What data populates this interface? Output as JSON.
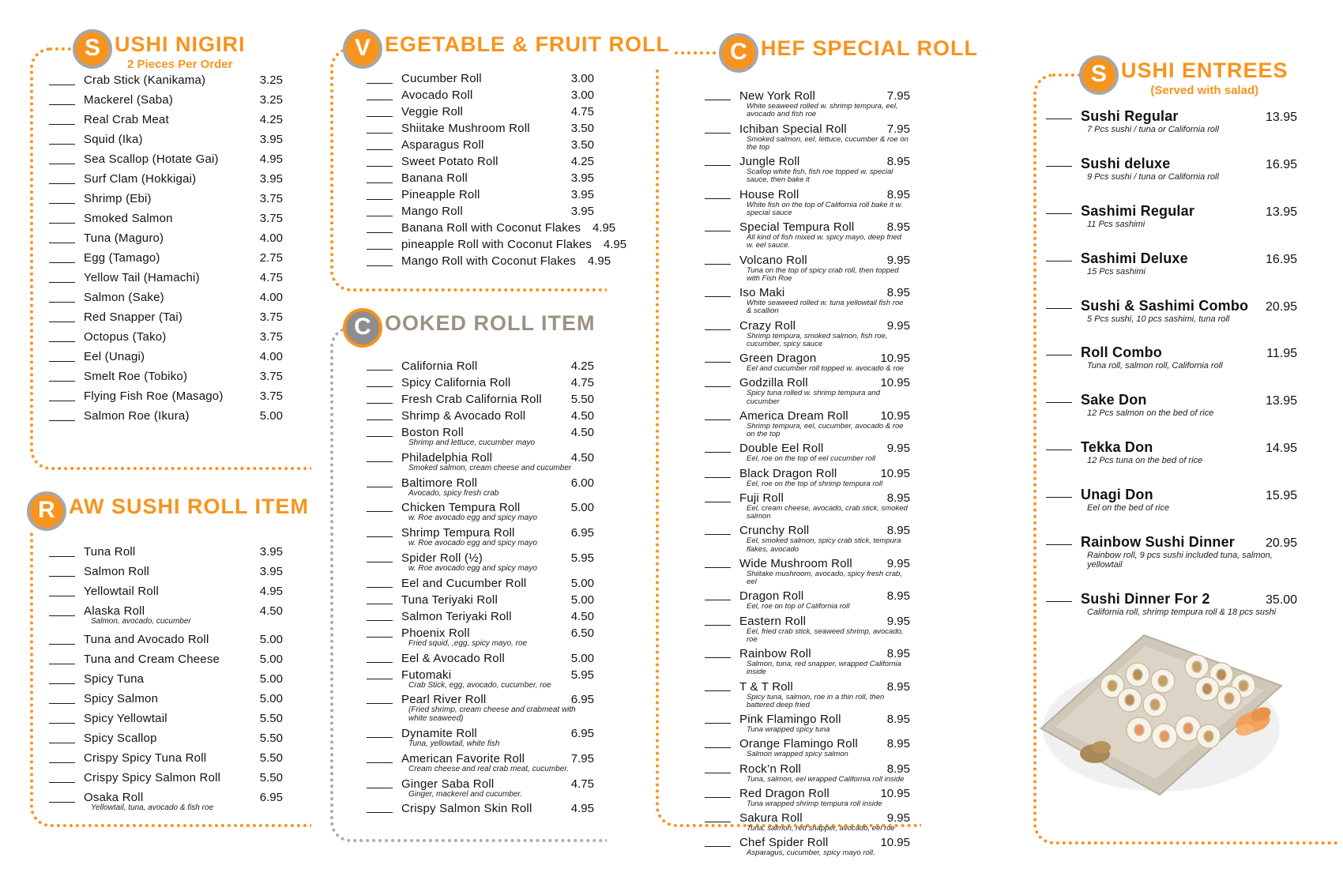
{
  "colors": {
    "accent_orange": "#f7941d",
    "cooked_title_gray": "#9c9283",
    "badge_ring_gray": "#a6a6a6",
    "text": "#121212"
  },
  "sections": [
    {
      "id": "sushi-nigiri",
      "badge_letter": "S",
      "title_rest": "USHI NIGIRI",
      "subtitle": "2 Pieces Per Order",
      "items": [
        {
          "name": "Crab Stick (Kanikama)",
          "price": "3.25"
        },
        {
          "name": "Mackerel (Saba)",
          "price": "3.25"
        },
        {
          "name": "Real Crab Meat",
          "price": "4.25"
        },
        {
          "name": "Squid (Ika)",
          "price": "3.95"
        },
        {
          "name": "Sea Scallop (Hotate Gai)",
          "price": "4.95"
        },
        {
          "name": "Surf Clam (Hokkigai)",
          "price": "3.95"
        },
        {
          "name": "Shrimp (Ebi)",
          "price": "3.75"
        },
        {
          "name": "Smoked Salmon",
          "price": "3.75"
        },
        {
          "name": "Tuna (Maguro)",
          "price": "4.00"
        },
        {
          "name": "Egg (Tamago)",
          "price": "2.75"
        },
        {
          "name": "Yellow Tail (Hamachi)",
          "price": "4.75"
        },
        {
          "name": "Salmon (Sake)",
          "price": "4.00"
        },
        {
          "name": "Red Snapper (Tai)",
          "price": "3.75"
        },
        {
          "name": "Octopus (Tako)",
          "price": "3.75"
        },
        {
          "name": "Eel (Unagi)",
          "price": "4.00"
        },
        {
          "name": "Smelt Roe (Tobiko)",
          "price": "3.75"
        },
        {
          "name": "Flying Fish Roe (Masago)",
          "price": "3.75"
        },
        {
          "name": "Salmon Roe (Ikura)",
          "price": "5.00"
        }
      ]
    },
    {
      "id": "raw-sushi-roll",
      "badge_letter": "R",
      "title_rest": "AW SUSHI ROLL ITEM",
      "subtitle": "",
      "items": [
        {
          "name": "Tuna Roll",
          "price": "3.95"
        },
        {
          "name": "Salmon Roll",
          "price": "3.95"
        },
        {
          "name": "Yellowtail Roll",
          "price": "4.95"
        },
        {
          "name": "Alaska Roll",
          "price": "4.50",
          "desc": "Salmon, avocado, cucumber"
        },
        {
          "name": "Tuna and Avocado Roll",
          "price": "5.00"
        },
        {
          "name": "Tuna and Cream Cheese",
          "price": "5.00"
        },
        {
          "name": "Spicy Tuna",
          "price": "5.00"
        },
        {
          "name": "Spicy Salmon",
          "price": "5.00"
        },
        {
          "name": "Spicy Yellowtail",
          "price": "5.50"
        },
        {
          "name": "Spicy Scallop",
          "price": "5.50"
        },
        {
          "name": "Crispy Spicy Tuna Roll",
          "price": "5.50"
        },
        {
          "name": "Crispy Spicy Salmon Roll",
          "price": "5.50"
        },
        {
          "name": "Osaka Roll",
          "price": "6.95",
          "desc": "Yellowtail, tuna, avocado & fish roe"
        }
      ]
    },
    {
      "id": "vegetable-fruit-roll",
      "badge_letter": "V",
      "title_rest": "EGETABLE & FRUIT ROLL",
      "subtitle": "",
      "items": [
        {
          "name": "Cucumber Roll",
          "price": "3.00"
        },
        {
          "name": "Avocado Roll",
          "price": "3.00"
        },
        {
          "name": "Veggie Roll",
          "price": "4.75"
        },
        {
          "name": "Shiitake Mushroom Roll",
          "price": "3.50"
        },
        {
          "name": "Asparagus Roll",
          "price": "3.50"
        },
        {
          "name": "Sweet Potato Roll",
          "price": "4.25"
        },
        {
          "name": "Banana Roll",
          "price": "3.95"
        },
        {
          "name": "Pineapple Roll",
          "price": "3.95"
        },
        {
          "name": "Mango Roll",
          "price": "3.95"
        },
        {
          "name": "Banana Roll with Coconut Flakes",
          "price": "4.95"
        },
        {
          "name": "pineapple Roll with Coconut Flakes",
          "price": "4.95"
        },
        {
          "name": "Mango Roll with Coconut Flakes",
          "price": "4.95"
        }
      ]
    },
    {
      "id": "cooked-roll-item",
      "badge_letter": "C",
      "title_rest": "OOKED ROLL ITEM",
      "subtitle": "",
      "items": [
        {
          "name": "California Roll",
          "price": "4.25"
        },
        {
          "name": "Spicy California Roll",
          "price": "4.75"
        },
        {
          "name": "Fresh Crab California Roll",
          "price": "5.50"
        },
        {
          "name": "Shrimp & Avocado Roll",
          "price": "4.50"
        },
        {
          "name": "Boston Roll",
          "price": "4.50",
          "desc": "Shrimp and lettuce, cucumber mayo"
        },
        {
          "name": "Philadelphia Roll",
          "price": "4.50",
          "desc": "Smoked salmon, cream cheese and cucumber"
        },
        {
          "name": "Baltimore Roll",
          "price": "6.00",
          "desc": "Avocado, spicy fresh crab"
        },
        {
          "name": "Chicken Tempura Roll",
          "price": "5.00",
          "desc": "w. Roe avocado egg and spicy mayo"
        },
        {
          "name": "Shrimp Tempura Roll",
          "price": "6.95",
          "desc": "w. Roe avocado egg and spicy mayo"
        },
        {
          "name": "Spider Roll (½)",
          "price": "5.95",
          "desc": "w. Roe avocado egg and spicy mayo"
        },
        {
          "name": "Eel and Cucumber Roll",
          "price": "5.00"
        },
        {
          "name": "Tuna Teriyaki Roll",
          "price": "5.00"
        },
        {
          "name": "Salmon Teriyaki Roll",
          "price": "4.50"
        },
        {
          "name": "Phoenix Roll",
          "price": "6.50",
          "desc": "Fried squid, ,egg, spicy mayo, roe"
        },
        {
          "name": "Eel & Avocado Roll",
          "price": "5.00"
        },
        {
          "name": "Futomaki",
          "price": "5.95",
          "desc": "Crab Stick, egg, avocado, cucumber, roe"
        },
        {
          "name": "Pearl River Roll",
          "price": "6.95",
          "desc": "(Fried shrimp, cream cheese and crabmeat with white seaweed)"
        },
        {
          "name": "Dynamite Roll",
          "price": "6.95",
          "desc": "Tuna, yellowtail, white fish"
        },
        {
          "name": "American Favorite Roll",
          "price": "7.95",
          "desc": "Cream cheese and real crab meat, cucumber."
        },
        {
          "name": "Ginger Saba Roll",
          "price": "4.75",
          "desc": "Ginger, mackerel and cucumber."
        },
        {
          "name": "Crispy Salmon Skin Roll",
          "price": "4.95"
        }
      ]
    },
    {
      "id": "chef-special-roll",
      "badge_letter": "C",
      "title_rest": "HEF SPECIAL ROLL",
      "subtitle": "",
      "items": [
        {
          "name": "New York Roll",
          "price": "7.95",
          "desc": "White seaweed rolled w. shrimp tempura, eel, avocado and fish roe"
        },
        {
          "name": "Ichiban Special Roll",
          "price": "7.95",
          "desc": "Smoked salmon, eel, lettuce, cucumber & roe on the top"
        },
        {
          "name": "Jungle Roll",
          "price": "8.95",
          "desc": "Scallop white fish, fish roe topped w. special sauce, then bake it"
        },
        {
          "name": "House Roll",
          "price": "8.95",
          "desc": "White fish on the top of California roll bake it w. special sauce"
        },
        {
          "name": "Special Tempura Roll",
          "price": "8.95",
          "desc": "All kind of fish mixed w. spicy mayo, deep fried w. eel sauce."
        },
        {
          "name": "Volcano Roll",
          "price": "9.95",
          "desc": "Tuna on the top of spicy crab roll, then topped with Fish Roe"
        },
        {
          "name": "Iso Maki",
          "price": "8.95",
          "desc": "White seaweed rolled w. tuna yellowtail fish roe & scallion"
        },
        {
          "name": "Crazy Roll",
          "price": "9.95",
          "desc": "Shrimp tempura, smoked salmon, fish roe, cucumber, spicy sauce"
        },
        {
          "name": "Green Dragon",
          "price": "10.95",
          "desc": "Eel and cucumber roll topped w. avocado & roe"
        },
        {
          "name": "Godzilla Roll",
          "price": "10.95",
          "desc": "Spicy tuna rolled w. shrimp tempura and cucumber"
        },
        {
          "name": "America Dream Roll",
          "price": "10.95",
          "desc": "Shrimp tempura, eel, cucumber, avocado & roe on the top"
        },
        {
          "name": "Double Eel Roll",
          "price": "9.95",
          "desc": "Eel, roe on the top of eel cucumber roll"
        },
        {
          "name": "Black Dragon Roll",
          "price": "10.95",
          "desc": "Eel, roe on the top of shrimp tempura roll"
        },
        {
          "name": "Fuji Roll",
          "price": "8.95",
          "desc": "Eel, cream cheese, avocado, crab stick, smoked salmon"
        },
        {
          "name": "Crunchy Roll",
          "price": "8.95",
          "desc": "Eel, smoked salmon, spicy crab stick, tempura flakes, avocado"
        },
        {
          "name": "Wide Mushroom Roll",
          "price": "9.95",
          "desc": "Shiitake mushroom, avocado, spicy fresh crab, eel"
        },
        {
          "name": "Dragon Roll",
          "price": "8.95",
          "desc": "Eel, roe on top of California roll"
        },
        {
          "name": "Eastern Roll",
          "price": "9.95",
          "desc": "Eel, fried crab stick, seaweed shrimp, avocado, roe"
        },
        {
          "name": "Rainbow Roll",
          "price": "8.95",
          "desc": "Salmon, tuna, red snapper, wrapped California inside"
        },
        {
          "name": "T & T Roll",
          "price": "8.95",
          "desc": "Spicy tuna, salmon, roe in a thin roll, then battered deep fried"
        },
        {
          "name": "Pink Flamingo Roll",
          "price": "8.95",
          "desc": "Tuna wrapped spicy tuna"
        },
        {
          "name": "Orange Flamingo Roll",
          "price": "8.95",
          "desc": "Salmon wrapped spicy salmon"
        },
        {
          "name": "Rock’n Roll",
          "price": "8.95",
          "desc": "Tuna, salmon, eel wrapped California roll inside"
        },
        {
          "name": "Red Dragon Roll",
          "price": "10.95",
          "desc": "Tuna wrapped shrimp tempura roll inside"
        },
        {
          "name": "Sakura Roll",
          "price": "9.95",
          "desc": "Tuna, salmon, red snapper, avocado, eel roe"
        },
        {
          "name": "Chef Spider Roll",
          "price": "10.95",
          "desc": "Asparagus, cucumber, spicy mayo roll."
        }
      ]
    },
    {
      "id": "sushi-entrees",
      "badge_letter": "S",
      "title_rest": "USHI ENTREES",
      "subtitle": "(Served with salad)",
      "items": [
        {
          "name": "Sushi Regular",
          "price": "13.95",
          "desc": "7 Pcs sushi / tuna or California roll"
        },
        {
          "name": "Sushi deluxe",
          "price": "16.95",
          "desc": "9 Pcs sushi / tuna or California roll"
        },
        {
          "name": "Sashimi Regular",
          "price": "13.95",
          "desc": "11 Pcs sashimi"
        },
        {
          "name": "Sashimi Deluxe",
          "price": "16.95",
          "desc": "15 Pcs sashimi"
        },
        {
          "name": "Sushi & Sashimi Combo",
          "price": "20.95",
          "desc": "5 Pcs sushi, 10 pcs sashimi, tuna roll"
        },
        {
          "name": "Roll Combo",
          "price": "11.95",
          "desc": "Tuna roll, salmon roll, California roll"
        },
        {
          "name": "Sake Don",
          "price": "13.95",
          "desc": "12 Pcs salmon on the bed of rice"
        },
        {
          "name": "Tekka Don",
          "price": "14.95",
          "desc": "12 Pcs tuna on the bed of rice"
        },
        {
          "name": "Unagi Don",
          "price": "15.95",
          "desc": "Eel on the bed of rice"
        },
        {
          "name": "Rainbow Sushi Dinner",
          "price": "20.95",
          "desc": "Rainbow roll, 9 pcs sushi included tuna, salmon, yellowtail"
        },
        {
          "name": "Sushi Dinner For 2",
          "price": "35.00",
          "desc": "California roll, shrimp tempura roll & 18 pcs sushi"
        }
      ]
    }
  ]
}
